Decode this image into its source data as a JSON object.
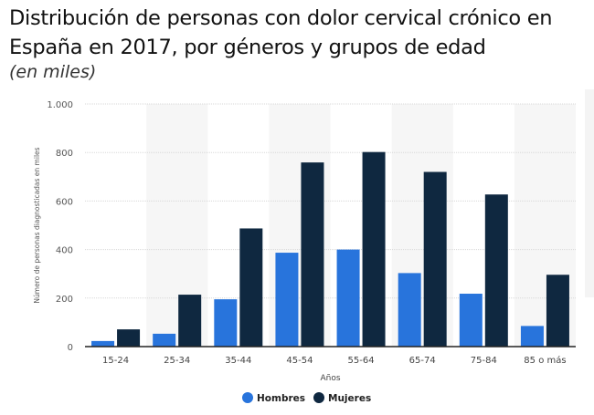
{
  "title": "Distribución de personas con dolor cervical crónico en España en 2017, por géneros y grupos de edad",
  "subtitle": "(en miles)",
  "chart_data": {
    "type": "bar",
    "categories": [
      "15-24",
      "25-34",
      "35-44",
      "45-54",
      "55-64",
      "65-74",
      "75-84",
      "85 o más"
    ],
    "series": [
      {
        "name": "Hombres",
        "color": "#2874dc",
        "values": [
          23,
          53,
          195,
          387,
          400,
          303,
          218,
          85
        ]
      },
      {
        "name": "Mujeres",
        "color": "#0f2840",
        "values": [
          71,
          214,
          487,
          759,
          802,
          720,
          627,
          296
        ]
      }
    ],
    "xlabel": "Años",
    "ylabel": "Número de personas diagnosticadas en miles",
    "ylim": [
      0,
      1000
    ],
    "yticks": [
      0,
      200,
      400,
      600,
      800,
      1000
    ],
    "ytick_labels": [
      "0",
      "200",
      "400",
      "600",
      "800",
      "1.000"
    ],
    "grid": true,
    "legend": "bottom"
  }
}
